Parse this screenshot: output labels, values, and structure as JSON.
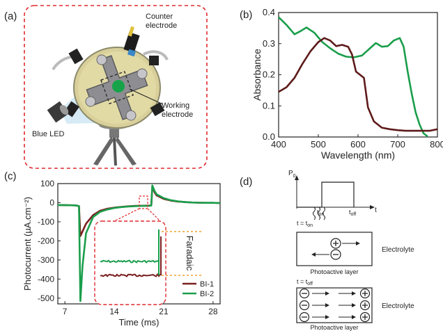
{
  "panels": {
    "a": {
      "label": "(a)",
      "annotations": {
        "counter": "Counter\nelectrode",
        "working": "Working\nelectrode",
        "led": "Blue LED"
      }
    },
    "b": {
      "label": "(b)"
    },
    "c": {
      "label": "(c)",
      "annotation": "Faradaic"
    },
    "d": {
      "label": "(d)",
      "axis_y": "P",
      "axis_y_sub": "0",
      "axis_x": "t",
      "t_on_label": "t",
      "t_on_sub": "on",
      "t_off_label": "t",
      "t_off_sub": "off",
      "eq_on": "t = t",
      "eq_on_sub": "on",
      "eq_off": "t = t",
      "eq_off_sub": "off",
      "electrolyte_1": "Electrolyte",
      "electrolyte_2": "Electrolyte",
      "photoactive_1": "Photoactive layer",
      "photoactive_2": "Photoactive layer"
    }
  },
  "chart_data": [
    {
      "panel": "b",
      "type": "line",
      "xlabel": "Wavelength (nm)",
      "ylabel": "Absorbance",
      "xlim": [
        400,
        800
      ],
      "ylim": [
        0.0,
        0.4
      ],
      "xticks": [
        400,
        500,
        600,
        700,
        800
      ],
      "yticks": [
        0.0,
        0.1,
        0.2,
        0.3,
        0.4
      ],
      "xtick_labels": [
        "400",
        "500",
        "600",
        "700",
        "800"
      ],
      "ytick_labels": [
        "0.0",
        "0.1",
        "0.2",
        "0.3",
        "0.4"
      ],
      "series": [
        {
          "color": "#1a9e4b",
          "x": [
            400,
            420,
            440,
            455,
            470,
            490,
            510,
            530,
            550,
            570,
            590,
            610,
            630,
            645,
            660,
            675,
            690,
            705,
            715,
            725,
            735,
            745,
            755,
            765,
            775
          ],
          "y": [
            0.385,
            0.36,
            0.33,
            0.34,
            0.352,
            0.335,
            0.305,
            0.285,
            0.268,
            0.258,
            0.256,
            0.262,
            0.285,
            0.302,
            0.29,
            0.292,
            0.31,
            0.318,
            0.29,
            0.21,
            0.14,
            0.08,
            0.04,
            0.012,
            0.002
          ]
        },
        {
          "color": "#5e1a1a",
          "x": [
            400,
            420,
            440,
            460,
            480,
            500,
            515,
            530,
            545,
            560,
            575,
            585,
            595,
            605,
            615,
            625,
            640,
            660,
            680,
            700,
            720,
            740,
            760,
            780,
            800
          ],
          "y": [
            0.145,
            0.16,
            0.19,
            0.235,
            0.275,
            0.305,
            0.318,
            0.31,
            0.292,
            0.296,
            0.29,
            0.265,
            0.21,
            0.2,
            0.19,
            0.095,
            0.05,
            0.03,
            0.025,
            0.022,
            0.02,
            0.02,
            0.02,
            0.02,
            0.025
          ]
        }
      ]
    },
    {
      "panel": "c",
      "type": "line",
      "xlabel": "Time (ms)",
      "ylabel": "Photocurrent (µA.cm⁻²)",
      "xlim": [
        6,
        29
      ],
      "ylim": [
        -530,
        100
      ],
      "xticks": [
        7,
        14,
        21,
        28
      ],
      "yticks": [
        100,
        0,
        -100,
        -200,
        -300,
        -400,
        -500
      ],
      "xtick_labels": [
        "7",
        "14",
        "21",
        "28"
      ],
      "ytick_labels": [
        "100",
        "0",
        "-100",
        "-200",
        "-300",
        "-400",
        "-500"
      ],
      "legend_position": "bottom-right",
      "series": [
        {
          "name": "BI-1",
          "color": "#7a1f1f",
          "x": [
            6,
            8.5,
            9.0,
            9.2,
            9.5,
            10,
            11,
            12,
            13,
            14,
            15,
            16,
            17,
            18,
            19,
            19.25,
            19.4,
            19.7,
            20,
            21,
            22,
            23,
            24,
            25,
            26,
            27,
            28,
            29
          ],
          "y": [
            -12,
            -14,
            -18,
            -175,
            -150,
            -110,
            -65,
            -42,
            -32,
            -26,
            -22,
            -19,
            -17,
            -16,
            -15,
            -14,
            85,
            55,
            38,
            20,
            11,
            6,
            3,
            1,
            0,
            -1,
            -1,
            -2
          ]
        },
        {
          "name": "BI-2",
          "color": "#1a9e4b",
          "x": [
            6,
            8.5,
            9.0,
            9.2,
            9.5,
            10,
            11,
            12,
            13,
            14,
            15,
            16,
            17,
            18,
            19,
            19.25,
            19.4,
            19.7,
            20,
            21,
            22,
            23,
            24,
            25,
            26,
            27,
            28,
            29
          ],
          "y": [
            -12,
            -14,
            -18,
            -515,
            -330,
            -160,
            -75,
            -48,
            -36,
            -28,
            -23,
            -20,
            -18,
            -17,
            -16,
            -15,
            90,
            62,
            44,
            24,
            13,
            7,
            3,
            1,
            0,
            -1,
            -1,
            -2
          ]
        }
      ]
    }
  ]
}
